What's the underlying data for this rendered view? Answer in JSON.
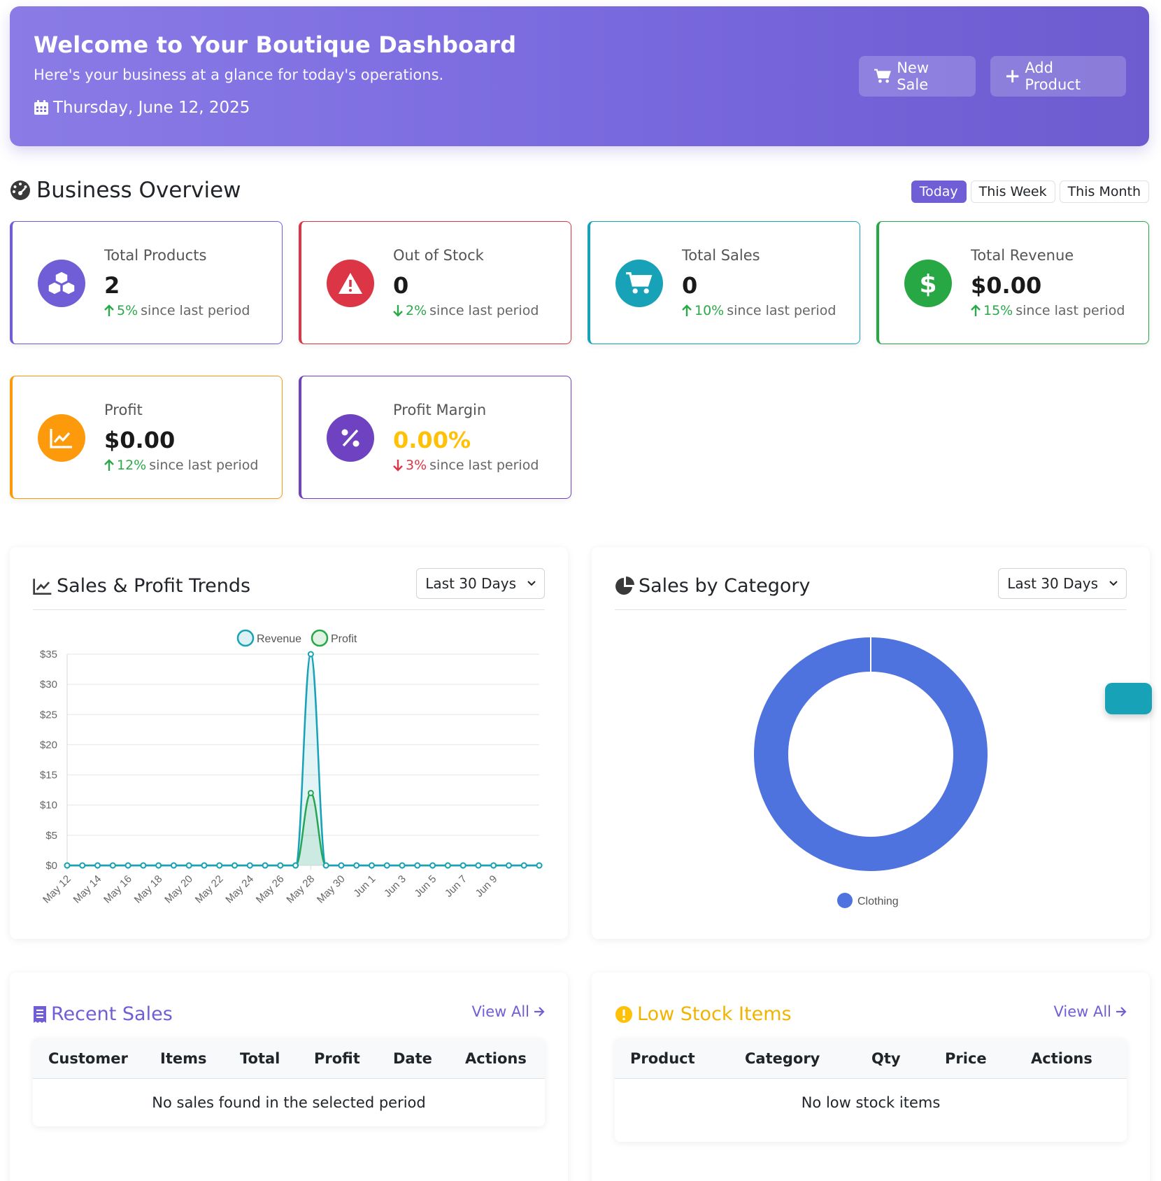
{
  "header": {
    "title": "Welcome to Your Boutique Dashboard",
    "subtitle": "Here's your business at a glance for today's operations.",
    "date": "Thursday, June 12, 2025",
    "new_sale_label": "New Sale",
    "add_product_label": "Add Product"
  },
  "overview": {
    "title": "Business Overview",
    "tabs": [
      "Today",
      "This Week",
      "This Month"
    ],
    "active_tab": "Today"
  },
  "stats": [
    {
      "label": "Total Products",
      "value": "2",
      "change": "5%",
      "direction": "up",
      "since": "since last period",
      "color": "#6f5ed6",
      "icon": "cubes-icon"
    },
    {
      "label": "Out of Stock",
      "value": "0",
      "change": "2%",
      "direction": "down",
      "since": "since last period",
      "color": "#dc3545",
      "icon": "warning-icon",
      "change_color": "#2aa84a"
    },
    {
      "label": "Total Sales",
      "value": "0",
      "change": "10%",
      "direction": "up",
      "since": "since last period",
      "color": "#17a2b8",
      "icon": "cart-icon"
    },
    {
      "label": "Total Revenue",
      "value": "$0.00",
      "change": "15%",
      "direction": "up",
      "since": "since last period",
      "color": "#28a745",
      "icon": "dollar-icon"
    },
    {
      "label": "Profit",
      "value": "$0.00",
      "change": "12%",
      "direction": "up",
      "since": "since last period",
      "color": "#fd9a0b",
      "icon": "chart-line-icon"
    },
    {
      "label": "Profit Margin",
      "value": "0.00%",
      "change": "3%",
      "direction": "down",
      "since": "since last period",
      "color": "#6f42c1",
      "icon": "percent-icon",
      "value_color": "#ffc107"
    }
  ],
  "trends_panel": {
    "title": "Sales & Profit Trends",
    "range": "Last 30 Days"
  },
  "category_panel": {
    "title": "Sales by Category",
    "range": "Last 30 Days"
  },
  "chart_data": [
    {
      "type": "line",
      "title": "",
      "x": [
        "May 12",
        "May 13",
        "May 14",
        "May 15",
        "May 16",
        "May 17",
        "May 18",
        "May 19",
        "May 20",
        "May 21",
        "May 22",
        "May 23",
        "May 24",
        "May 25",
        "May 26",
        "May 27",
        "May 28",
        "May 29",
        "May 30",
        "May 31",
        "Jun 1",
        "Jun 2",
        "Jun 3",
        "Jun 4",
        "Jun 5",
        "Jun 6",
        "Jun 7",
        "Jun 8",
        "Jun 9",
        "Jun 10",
        "Jun 11",
        "Jun 12"
      ],
      "x_tick_labels": [
        "May 12",
        "May 14",
        "May 16",
        "May 18",
        "May 20",
        "May 22",
        "May 24",
        "May 26",
        "May 28",
        "May 30",
        "Jun 1",
        "Jun 3",
        "Jun 5",
        "Jun 7",
        "Jun 9"
      ],
      "series": [
        {
          "name": "Revenue",
          "color": "#17a2b8",
          "values": [
            0,
            0,
            0,
            0,
            0,
            0,
            0,
            0,
            0,
            0,
            0,
            0,
            0,
            0,
            0,
            0,
            35,
            0,
            0,
            0,
            0,
            0,
            0,
            0,
            0,
            0,
            0,
            0,
            0,
            0,
            0,
            0
          ]
        },
        {
          "name": "Profit",
          "color": "#28a745",
          "values": [
            0,
            0,
            0,
            0,
            0,
            0,
            0,
            0,
            0,
            0,
            0,
            0,
            0,
            0,
            0,
            0,
            12,
            0,
            0,
            0,
            0,
            0,
            0,
            0,
            0,
            0,
            0,
            0,
            0,
            0,
            0,
            0
          ]
        }
      ],
      "y_ticks": [
        "$0",
        "$5",
        "$10",
        "$15",
        "$20",
        "$25",
        "$30",
        "$35"
      ],
      "ylim": [
        0,
        35
      ],
      "legend": "top",
      "grid": true
    },
    {
      "type": "pie",
      "title": "",
      "categories": [
        "Clothing"
      ],
      "values": [
        100
      ],
      "colors": [
        "#4e73df"
      ],
      "legend": "bottom"
    }
  ],
  "recent_sales": {
    "title": "Recent Sales",
    "view_all": "View All",
    "columns": [
      "Customer",
      "Items",
      "Total",
      "Profit",
      "Date",
      "Actions"
    ],
    "empty": "No sales found in the selected period"
  },
  "low_stock": {
    "title": "Low Stock Items",
    "view_all": "View All",
    "columns": [
      "Product",
      "Category",
      "Qty",
      "Price",
      "Actions"
    ],
    "empty": "No low stock items"
  }
}
